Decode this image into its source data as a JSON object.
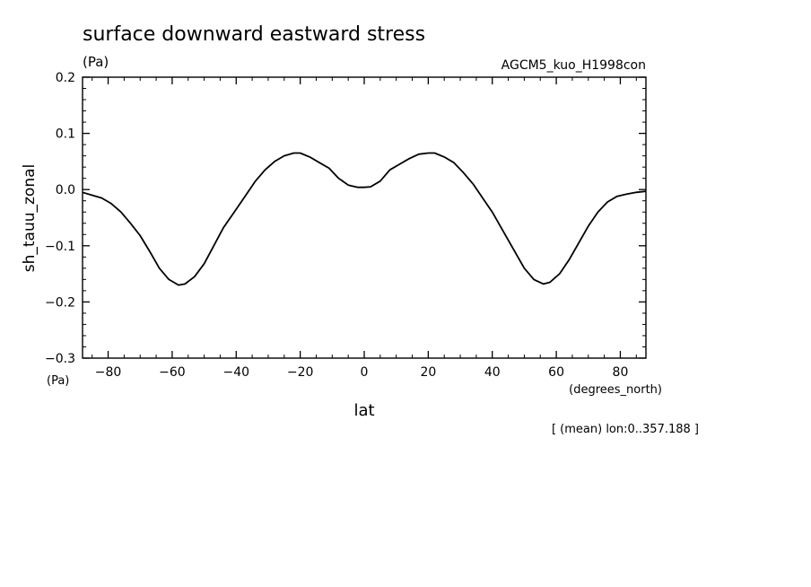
{
  "chart_data": {
    "type": "line",
    "title": "surface downward eastward stress",
    "title_units": "(Pa)",
    "dataset_label": "AGCM5_kuo_H1998con",
    "ylabel": "sh_tauu_zonal",
    "y_units": "(Pa)",
    "xlabel": "lat",
    "x_units": "(degrees_north)",
    "footnote": "[ (mean) lon:0..357.188 ]",
    "xlim": [
      -88,
      88
    ],
    "ylim": [
      -0.3,
      0.2
    ],
    "x_ticks": [
      -80,
      -60,
      -40,
      -20,
      0,
      20,
      40,
      60,
      80
    ],
    "x_tick_labels": [
      "−80",
      "−60",
      "−40",
      "−20",
      "0",
      "20",
      "40",
      "60",
      "80"
    ],
    "y_ticks": [
      -0.3,
      -0.2,
      -0.1,
      0.0,
      0.1,
      0.2
    ],
    "y_tick_labels": [
      "−0.3",
      "−0.2",
      "−0.1",
      "0.0",
      "0.1",
      "0.2"
    ],
    "x_minor_step": 5,
    "y_minor_step": 0.02,
    "grid": false,
    "series": [
      {
        "x": [
          -88,
          -85,
          -82,
          -79,
          -76,
          -73,
          -70,
          -67,
          -64,
          -61,
          -58,
          -56,
          -53,
          -50,
          -47,
          -44,
          -40,
          -37,
          -34,
          -31,
          -28,
          -25,
          -22,
          -20,
          -17,
          -14,
          -11,
          -8,
          -5,
          -2,
          0,
          2,
          5,
          8,
          11,
          14,
          17,
          20,
          22,
          25,
          28,
          31,
          34,
          37,
          40,
          44,
          47,
          50,
          53,
          56,
          58,
          61,
          64,
          67,
          70,
          73,
          76,
          79,
          82,
          85,
          88
        ],
        "y": [
          -0.005,
          -0.01,
          -0.015,
          -0.025,
          -0.04,
          -0.06,
          -0.082,
          -0.11,
          -0.14,
          -0.16,
          -0.17,
          -0.168,
          -0.155,
          -0.132,
          -0.1,
          -0.068,
          -0.035,
          -0.01,
          0.015,
          0.035,
          0.05,
          0.06,
          0.065,
          0.065,
          0.058,
          0.048,
          0.038,
          0.02,
          0.008,
          0.004,
          0.004,
          0.005,
          0.015,
          0.035,
          0.045,
          0.055,
          0.063,
          0.065,
          0.065,
          0.058,
          0.048,
          0.03,
          0.01,
          -0.015,
          -0.04,
          -0.08,
          -0.11,
          -0.14,
          -0.16,
          -0.168,
          -0.165,
          -0.15,
          -0.125,
          -0.095,
          -0.065,
          -0.04,
          -0.022,
          -0.012,
          -0.008,
          -0.005,
          -0.003
        ]
      }
    ]
  }
}
